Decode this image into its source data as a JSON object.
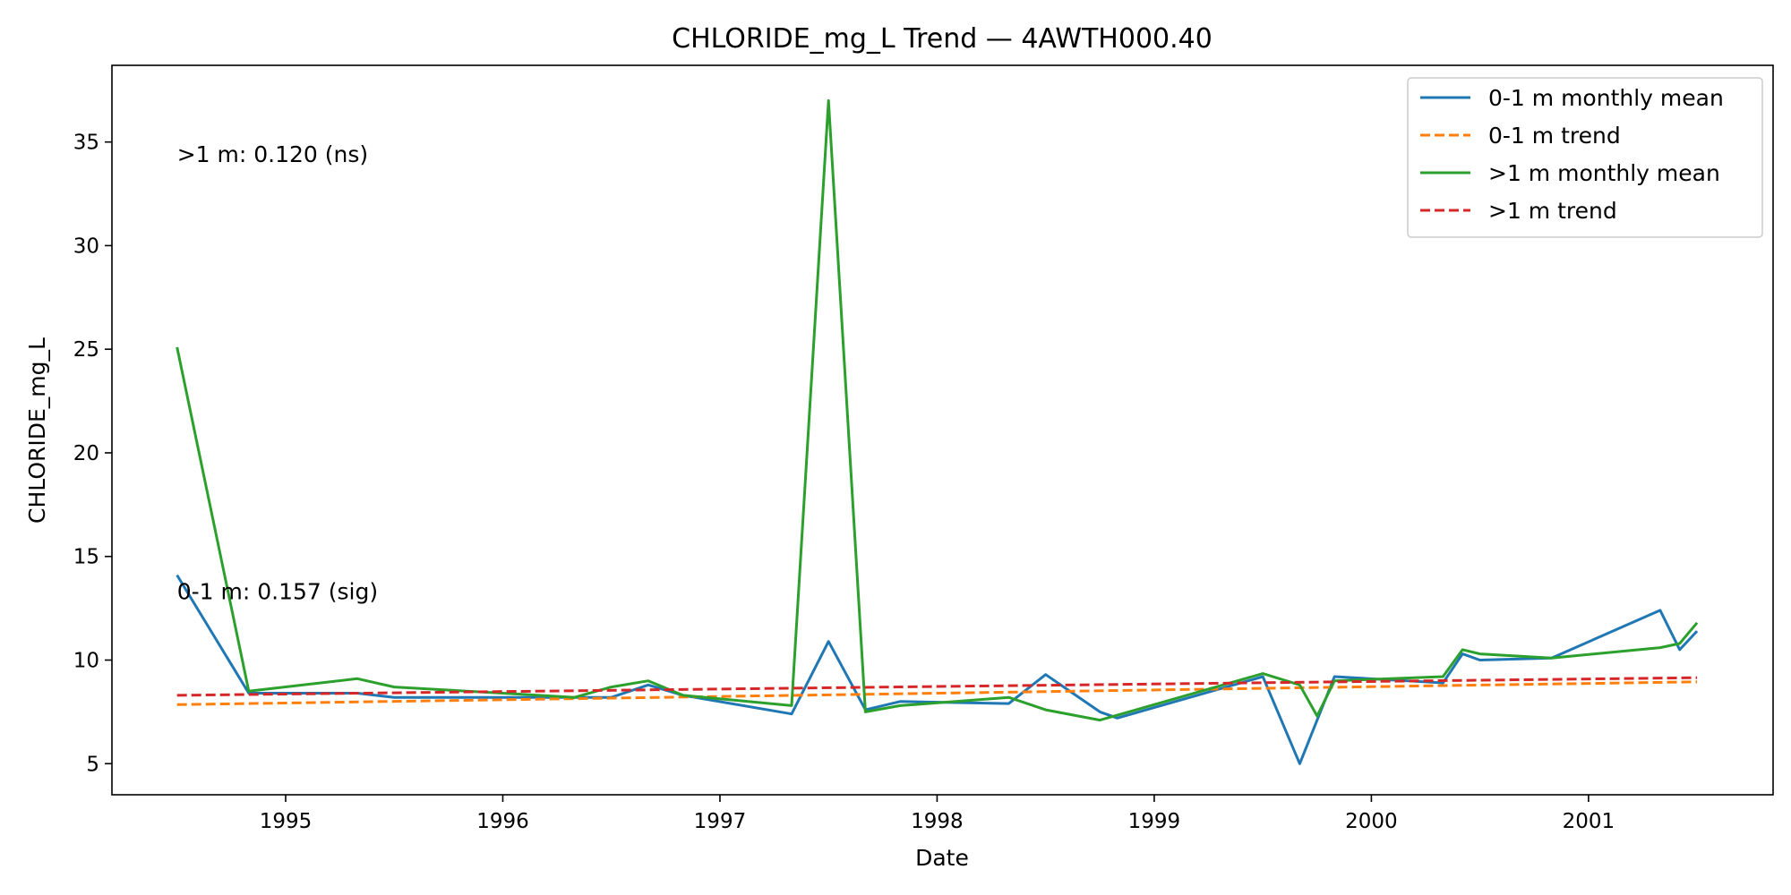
{
  "chart_data": {
    "type": "line",
    "title": "CHLORIDE_mg_L Trend — 4AWTH000.40",
    "xlabel": "Date",
    "ylabel": "CHLORIDE_mg_L",
    "xlim": [
      1994.2,
      2001.85
    ],
    "ylim": [
      3.5,
      38.7
    ],
    "x_ticks": [
      1995,
      1996,
      1997,
      1998,
      1999,
      2000,
      2001
    ],
    "y_ticks": [
      5,
      10,
      15,
      20,
      25,
      30,
      35
    ],
    "grid": false,
    "legend_position": "top-right",
    "series": [
      {
        "name": "0-1 m monthly mean",
        "style": "solid",
        "color": "#1f77b4",
        "points": [
          [
            1994.5,
            14.1
          ],
          [
            1994.83,
            8.4
          ],
          [
            1995.33,
            8.4
          ],
          [
            1995.5,
            8.2
          ],
          [
            1996.0,
            8.2
          ],
          [
            1996.5,
            8.2
          ],
          [
            1996.67,
            8.8
          ],
          [
            1996.83,
            8.3
          ],
          [
            1997.33,
            7.4
          ],
          [
            1997.5,
            10.9
          ],
          [
            1997.67,
            7.6
          ],
          [
            1997.83,
            8.0
          ],
          [
            1998.33,
            7.9
          ],
          [
            1998.5,
            9.3
          ],
          [
            1998.75,
            7.5
          ],
          [
            1998.83,
            7.2
          ],
          [
            1999.5,
            9.2
          ],
          [
            1999.67,
            5.0
          ],
          [
            1999.83,
            9.2
          ],
          [
            2000.33,
            8.9
          ],
          [
            2000.42,
            10.3
          ],
          [
            2000.5,
            10.0
          ],
          [
            2000.83,
            10.1
          ],
          [
            2001.33,
            12.4
          ],
          [
            2001.42,
            10.5
          ],
          [
            2001.5,
            11.4
          ]
        ]
      },
      {
        "name": "0-1 m trend",
        "style": "dashed",
        "color": "#ff7f0e",
        "points": [
          [
            1994.5,
            7.85
          ],
          [
            2001.5,
            8.95
          ]
        ]
      },
      {
        "name": ">1 m monthly mean",
        "style": "solid",
        "color": "#2ca02c",
        "points": [
          [
            1994.5,
            25.1
          ],
          [
            1994.83,
            8.5
          ],
          [
            1995.33,
            9.1
          ],
          [
            1995.5,
            8.7
          ],
          [
            1996.0,
            8.4
          ],
          [
            1996.33,
            8.2
          ],
          [
            1996.5,
            8.7
          ],
          [
            1996.67,
            9.0
          ],
          [
            1996.83,
            8.3
          ],
          [
            1997.33,
            7.8
          ],
          [
            1997.5,
            37.0
          ],
          [
            1997.67,
            7.5
          ],
          [
            1997.83,
            7.8
          ],
          [
            1998.33,
            8.2
          ],
          [
            1998.5,
            7.6
          ],
          [
            1998.75,
            7.1
          ],
          [
            1999.5,
            9.35
          ],
          [
            1999.67,
            8.8
          ],
          [
            1999.75,
            7.3
          ],
          [
            1999.83,
            9.0
          ],
          [
            2000.33,
            9.2
          ],
          [
            2000.42,
            10.5
          ],
          [
            2000.5,
            10.3
          ],
          [
            2000.83,
            10.1
          ],
          [
            2001.33,
            10.6
          ],
          [
            2001.42,
            10.8
          ],
          [
            2001.5,
            11.8
          ]
        ]
      },
      {
        "name": ">1 m trend",
        "style": "dashed",
        "color": "#d62728",
        "points": [
          [
            1994.5,
            8.3
          ],
          [
            2001.5,
            9.15
          ]
        ]
      }
    ],
    "annotations": [
      {
        "text": ">1 m: 0.120 (ns)",
        "x": 1994.5,
        "y": 34.4
      },
      {
        "text": "0-1 m: 0.157 (sig)",
        "x": 1994.5,
        "y": 13.3
      }
    ]
  }
}
